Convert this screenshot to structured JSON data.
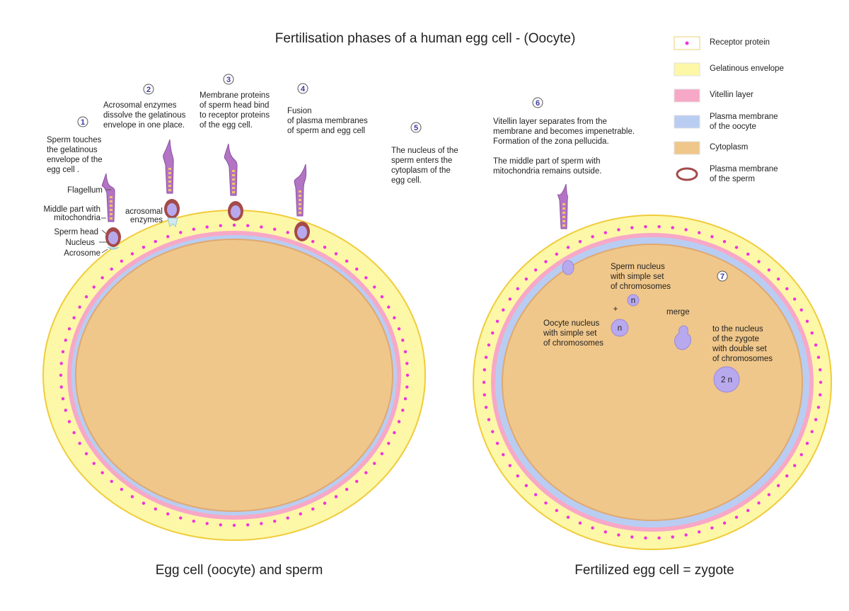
{
  "title": "Fertilisation phases of a human egg cell - (Oocyte)",
  "captions": {
    "left": "Egg cell (oocyte) and sperm",
    "right": "Fertilized egg cell = zygote"
  },
  "colors": {
    "receptor": "#ee33dd",
    "gelatinous": "#fdf7a8",
    "vitellin": "#f7a8c6",
    "plasma_oocyte": "#b9cdf2",
    "cytoplasm": "#f0c78a",
    "sperm_membrane": "#a44a4a",
    "flagellum": "#b374c4",
    "nucleus": "#b8a9ee"
  },
  "legend": [
    {
      "icon": "receptor-dot",
      "lines": [
        "Receptor protein"
      ]
    },
    {
      "icon": "swatch",
      "lines": [
        "Gelatinous envelope"
      ]
    },
    {
      "icon": "swatch",
      "lines": [
        "Vitellin layer"
      ]
    },
    {
      "icon": "swatch",
      "lines": [
        "Plasma membrane",
        "of the oocyte"
      ]
    },
    {
      "icon": "swatch",
      "lines": [
        "Cytoplasm"
      ]
    },
    {
      "icon": "ring",
      "lines": [
        "Plasma membrane",
        "of the sperm"
      ]
    }
  ],
  "steps": [
    {
      "n": "1",
      "lines": [
        "Sperm touches",
        "the gelatinous",
        "envelope of the",
        "egg cell ."
      ]
    },
    {
      "n": "2",
      "lines": [
        "Acrosomal enzymes",
        "dissolve the gelatinous",
        "envelope in one place."
      ]
    },
    {
      "n": "3",
      "lines": [
        "Membrane proteins",
        "of sperm head bind",
        "to receptor proteins",
        "of the egg cell."
      ]
    },
    {
      "n": "4",
      "lines": [
        "Fusion",
        "of plasma membranes",
        "of sperm and egg cell"
      ]
    },
    {
      "n": "5",
      "lines": [
        "The nucleus of the",
        "sperm enters the",
        "cytoplasm of the",
        "egg cell."
      ]
    },
    {
      "n": "6",
      "lines": [
        "Vitellin layer separates from the",
        "membrane and becomes impenetrable.",
        "Formation of the zona pellucida.",
        "",
        "The middle part of sperm with",
        "mitochondria remains outside."
      ]
    },
    {
      "n": "7",
      "lines": []
    }
  ],
  "sperm_labels": {
    "flagellum": "Flagellum",
    "middle": [
      "Middle part with",
      "mitochondria"
    ],
    "head": "Sperm head",
    "nucleus": "Nucleus",
    "acrosome": "Acrosome",
    "enzymes": [
      "acrosomal",
      "enzymes"
    ]
  },
  "zygote": {
    "sperm_nucleus": [
      "Sperm nucleus",
      "with simple set",
      "of chromosomes"
    ],
    "oocyte_nucleus": [
      "Oocyte nucleus",
      "with simple set",
      "of chromosomes"
    ],
    "plus": "+",
    "merge": "merge",
    "result": [
      "to the nucleus",
      "of the zygote",
      "with double set",
      "of chromosomes"
    ],
    "n": "n",
    "two_n": "2 n"
  }
}
